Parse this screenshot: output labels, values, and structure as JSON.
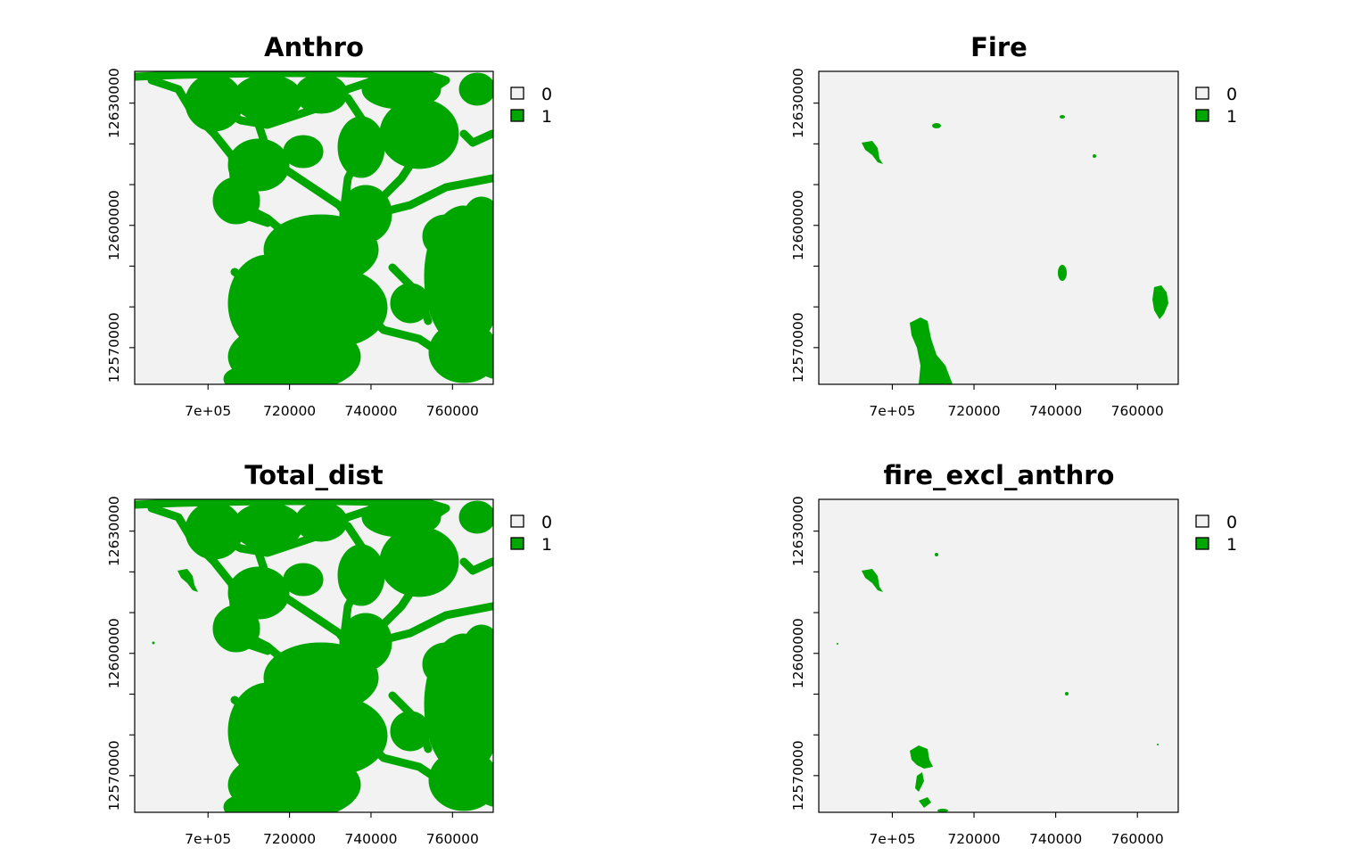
{
  "colors": {
    "background_class": "#f2f2f2",
    "disturbed_class": "#00a600",
    "frame": "#000000"
  },
  "chart_data": [
    {
      "type": "heatmap",
      "title": "Anthro",
      "xlim": [
        682000,
        770000
      ],
      "ylim": [
        12561000,
        12637800
      ],
      "x_ticks": [
        700000,
        720000,
        740000,
        760000
      ],
      "x_tick_labels": [
        "7e+05",
        "720000",
        "740000",
        "760000"
      ],
      "y_ticks": [
        12570000,
        12580000,
        12590000,
        12600000,
        12610000,
        12620000,
        12630000
      ],
      "y_tick_labels": [
        "12570000",
        "",
        "",
        "12600000",
        "",
        "",
        "12630000"
      ],
      "legend": {
        "placement": "right",
        "entries": [
          {
            "label": "0",
            "color": "#f2f2f2"
          },
          {
            "label": "1",
            "color": "#00a600"
          }
        ]
      },
      "classes": [
        0,
        1
      ]
    },
    {
      "type": "heatmap",
      "title": "Fire",
      "xlim": [
        682000,
        770000
      ],
      "ylim": [
        12561000,
        12637800
      ],
      "x_ticks": [
        700000,
        720000,
        740000,
        760000
      ],
      "x_tick_labels": [
        "7e+05",
        "720000",
        "740000",
        "760000"
      ],
      "y_ticks": [
        12570000,
        12580000,
        12590000,
        12600000,
        12610000,
        12620000,
        12630000
      ],
      "y_tick_labels": [
        "12570000",
        "",
        "",
        "12600000",
        "",
        "",
        "12630000"
      ],
      "legend": {
        "placement": "right",
        "entries": [
          {
            "label": "0",
            "color": "#f2f2f2"
          },
          {
            "label": "1",
            "color": "#00a600"
          }
        ]
      },
      "classes": [
        0,
        1
      ]
    },
    {
      "type": "heatmap",
      "title": "Total_dist",
      "xlim": [
        682000,
        770000
      ],
      "ylim": [
        12561000,
        12637800
      ],
      "x_ticks": [
        700000,
        720000,
        740000,
        760000
      ],
      "x_tick_labels": [
        "7e+05",
        "720000",
        "740000",
        "760000"
      ],
      "y_ticks": [
        12570000,
        12580000,
        12590000,
        12600000,
        12610000,
        12620000,
        12630000
      ],
      "y_tick_labels": [
        "12570000",
        "",
        "",
        "12600000",
        "",
        "",
        "12630000"
      ],
      "legend": {
        "placement": "right",
        "entries": [
          {
            "label": "0",
            "color": "#f2f2f2"
          },
          {
            "label": "1",
            "color": "#00a600"
          }
        ]
      },
      "classes": [
        0,
        1
      ]
    },
    {
      "type": "heatmap",
      "title": "fire_excl_anthro",
      "xlim": [
        682000,
        770000
      ],
      "ylim": [
        12561000,
        12637800
      ],
      "x_ticks": [
        700000,
        720000,
        740000,
        760000
      ],
      "x_tick_labels": [
        "7e+05",
        "720000",
        "740000",
        "760000"
      ],
      "y_ticks": [
        12570000,
        12580000,
        12590000,
        12600000,
        12610000,
        12620000,
        12630000
      ],
      "y_tick_labels": [
        "12570000",
        "",
        "",
        "12600000",
        "",
        "",
        "12630000"
      ],
      "legend": {
        "placement": "right",
        "entries": [
          {
            "label": "0",
            "color": "#f2f2f2"
          },
          {
            "label": "1",
            "color": "#00a600"
          }
        ]
      },
      "classes": [
        0,
        1
      ]
    }
  ]
}
